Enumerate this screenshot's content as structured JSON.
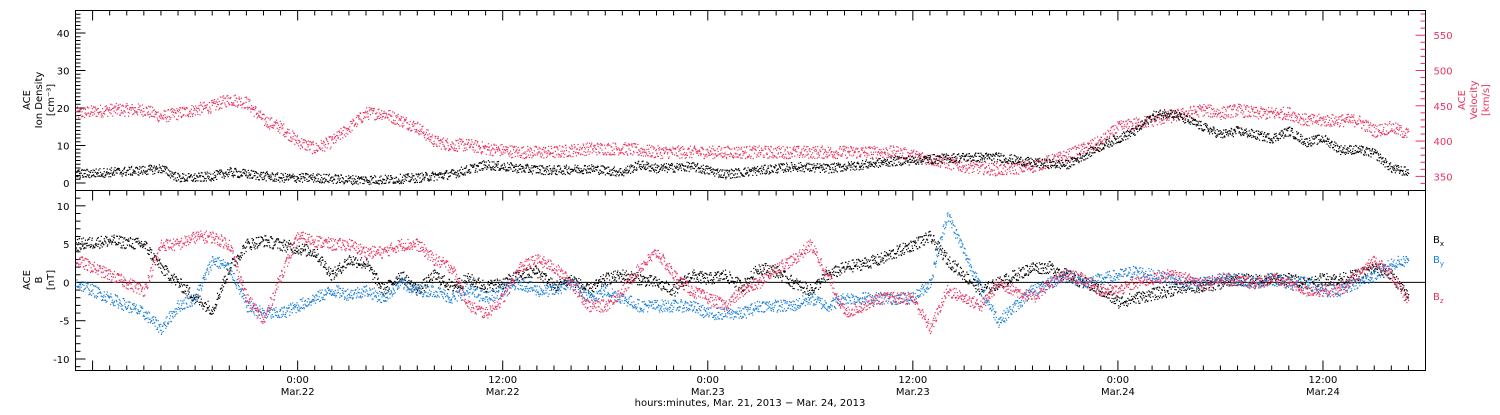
{
  "colors": {
    "black": "#000000",
    "pink": "#e8335f",
    "blue": "#1a7fd8"
  },
  "chart_data": [
    {
      "type": "scatter",
      "panel": "top",
      "ylabel_left_lines": [
        "ACE",
        "Ion Density",
        "[cm⁻³]"
      ],
      "ylabel_right_lines": [
        "ACE",
        "Velocity",
        "[km/s]"
      ],
      "ylim_left": [
        -2,
        46
      ],
      "yticks_left": [
        0,
        10,
        20,
        30,
        40
      ],
      "ylim_right": [
        330,
        585
      ],
      "yticks_right": [
        350,
        400,
        450,
        500,
        550
      ],
      "series": [
        {
          "axis": "left",
          "color": "#000000",
          "x": [
            0,
            2,
            4,
            5,
            6,
            7,
            8,
            9,
            10,
            12,
            14,
            16,
            18,
            20,
            22,
            24,
            26,
            28,
            30,
            32,
            33,
            34,
            36,
            38,
            40,
            42,
            44,
            46,
            48,
            50,
            52,
            54,
            56,
            58,
            60,
            61,
            62,
            63,
            64,
            65,
            66,
            67,
            68,
            69,
            70,
            71,
            72,
            73,
            74,
            75,
            76,
            77,
            78
          ],
          "y": [
            2.5,
            3,
            3.5,
            4,
            1.5,
            1.5,
            2,
            3,
            2.5,
            1.5,
            1.5,
            1,
            1,
            1.5,
            2.5,
            5,
            4,
            3.5,
            4,
            3,
            5,
            4,
            4.5,
            2.5,
            3.5,
            4.5,
            4,
            5,
            6,
            6.5,
            7,
            7,
            5.5,
            5,
            10,
            12,
            14,
            18,
            19,
            17,
            15,
            13,
            14,
            13,
            12,
            14,
            11,
            12,
            9,
            9,
            8,
            4,
            3
          ]
        },
        {
          "axis": "right",
          "color": "#e8335f",
          "x": [
            0,
            2,
            4,
            5,
            6,
            7,
            8,
            9,
            10,
            11,
            12,
            13,
            14,
            15,
            16,
            17,
            18,
            19,
            20,
            21,
            22,
            23,
            24,
            26,
            28,
            30,
            32,
            34,
            36,
            38,
            40,
            42,
            44,
            46,
            48,
            50,
            52,
            54,
            56,
            58,
            60,
            61,
            62,
            63,
            64,
            65,
            66,
            67,
            68,
            69,
            70,
            71,
            72,
            73,
            74,
            75,
            76,
            77,
            78
          ],
          "y": [
            440,
            445,
            445,
            435,
            440,
            445,
            450,
            460,
            455,
            430,
            420,
            400,
            390,
            400,
            420,
            440,
            440,
            430,
            420,
            400,
            395,
            395,
            390,
            385,
            385,
            390,
            390,
            385,
            385,
            385,
            385,
            385,
            385,
            385,
            385,
            375,
            365,
            360,
            365,
            380,
            400,
            420,
            425,
            430,
            435,
            440,
            445,
            440,
            445,
            440,
            440,
            440,
            430,
            430,
            430,
            430,
            415,
            420,
            410
          ]
        }
      ]
    },
    {
      "type": "scatter",
      "panel": "bottom",
      "ylabel_left_lines": [
        "ACE",
        "B",
        "[nT]"
      ],
      "ylim": [
        -11.5,
        12
      ],
      "yticks": [
        -10,
        -5,
        0,
        5,
        10
      ],
      "zero_line": true,
      "legend": [
        "B",
        "B",
        "B"
      ],
      "legend_subscripts": [
        "x",
        "y",
        "z"
      ],
      "series": [
        {
          "name": "Bx",
          "color": "#000000",
          "x": [
            0,
            2,
            4,
            5,
            6,
            7,
            8,
            9,
            10,
            11,
            12,
            13,
            14,
            15,
            16,
            17,
            18,
            19,
            20,
            21,
            22,
            23,
            24,
            25,
            26,
            27,
            28,
            29,
            30,
            31,
            32,
            33,
            34,
            35,
            36,
            37,
            38,
            39,
            40,
            41,
            42,
            43,
            44,
            45,
            46,
            47,
            48,
            49,
            50,
            51,
            52,
            53,
            54,
            55,
            56,
            57,
            58,
            59,
            60,
            61,
            62,
            63,
            64,
            65,
            66,
            67,
            68,
            69,
            70,
            71,
            72,
            73,
            74,
            75,
            76,
            77,
            78
          ],
          "y": [
            5,
            5.5,
            5,
            2,
            0,
            -2,
            -3.5,
            2,
            5,
            5.5,
            5,
            4.5,
            4,
            1,
            3,
            2.5,
            -1,
            1,
            -1,
            1,
            -0.5,
            0.5,
            -0.5,
            0,
            1,
            1.5,
            -0.5,
            0.5,
            -1,
            0.5,
            1,
            0.5,
            0,
            -1,
            1,
            0.5,
            1,
            -0.5,
            2,
            1.5,
            0,
            -1,
            1,
            2,
            2.5,
            3,
            4,
            5,
            6,
            3,
            1,
            -1,
            0,
            1,
            2,
            2,
            1,
            0,
            -1,
            -2.5,
            -2,
            -1.5,
            -1,
            -0.5,
            -0.5,
            0,
            0.5,
            0.3,
            0.5,
            0.5,
            0,
            0.5,
            0.5,
            1,
            2,
            1,
            -2
          ]
        },
        {
          "name": "By",
          "color": "#1a7fd8",
          "x": [
            0,
            2,
            4,
            5,
            6,
            7,
            8,
            9,
            10,
            11,
            12,
            13,
            14,
            15,
            16,
            17,
            18,
            19,
            20,
            21,
            22,
            23,
            24,
            25,
            26,
            27,
            28,
            29,
            30,
            31,
            32,
            33,
            34,
            35,
            36,
            37,
            38,
            39,
            40,
            41,
            42,
            43,
            44,
            45,
            46,
            47,
            48,
            49,
            50,
            51,
            52,
            53,
            54,
            55,
            56,
            57,
            58,
            59,
            60,
            61,
            62,
            63,
            64,
            65,
            66,
            67,
            68,
            69,
            70,
            71,
            72,
            73,
            74,
            75,
            76,
            77,
            78
          ],
          "y": [
            0,
            -2,
            -4,
            -6,
            -3,
            -2,
            3,
            2,
            -3,
            -4,
            -4,
            -3,
            -2,
            -1,
            -1.5,
            -1,
            -2,
            0,
            -1,
            -1,
            -2,
            -1,
            -2,
            -1,
            0,
            -1,
            -1,
            0,
            -2,
            -1,
            -2,
            -3,
            -3,
            -3,
            -3,
            -4,
            -4,
            -4,
            -3,
            -3,
            -3,
            -2,
            -3,
            -2,
            -2,
            -2,
            -2,
            -2,
            0,
            9,
            4,
            -1,
            -5,
            -3,
            -1,
            0,
            1,
            0,
            0.5,
            1,
            1.5,
            1,
            0.5,
            0,
            0,
            0.5,
            0.5,
            0,
            0.5,
            0,
            0,
            -1,
            -1,
            0,
            1,
            2.5,
            3
          ]
        },
        {
          "name": "Bz",
          "color": "#e8335f",
          "x": [
            0,
            2,
            4,
            5,
            6,
            7,
            8,
            9,
            10,
            11,
            12,
            13,
            14,
            15,
            16,
            17,
            18,
            19,
            20,
            21,
            22,
            23,
            24,
            25,
            26,
            27,
            28,
            29,
            30,
            31,
            32,
            33,
            34,
            35,
            36,
            37,
            38,
            39,
            40,
            41,
            42,
            43,
            44,
            45,
            46,
            47,
            48,
            49,
            50,
            51,
            52,
            53,
            54,
            55,
            56,
            57,
            58,
            59,
            60,
            61,
            62,
            63,
            64,
            65,
            66,
            67,
            68,
            69,
            70,
            71,
            72,
            73,
            74,
            75,
            76,
            77,
            78
          ],
          "y": [
            3,
            1,
            -1,
            5,
            5,
            6,
            6,
            5,
            -2,
            -5,
            1,
            6,
            5.5,
            5,
            5,
            4,
            4,
            5,
            5,
            3,
            2,
            -3,
            -4,
            -2,
            2,
            3,
            2,
            0,
            -3,
            -3,
            -1,
            2,
            4,
            1,
            -1,
            -2,
            -3,
            -1,
            0,
            2,
            3,
            5,
            1,
            -4,
            -3,
            -2,
            -2,
            -2,
            -6,
            -1,
            -2,
            -3,
            0,
            -1,
            -2,
            0,
            1,
            0.5,
            -1,
            -1,
            0,
            0.5,
            1,
            0.5,
            0,
            0.5,
            0.3,
            0,
            0.5,
            0,
            -1,
            -1,
            -1,
            1,
            3,
            1,
            -2.5
          ]
        }
      ],
      "x_tick_labels": [
        [
          "0:00",
          "Mar.22"
        ],
        [
          "12:00",
          "Mar.22"
        ],
        [
          "0:00",
          "Mar.23"
        ],
        [
          "12:00",
          "Mar.23"
        ],
        [
          "0:00",
          "Mar.24"
        ],
        [
          "12:00",
          "Mar.24"
        ]
      ],
      "x_tick_hours": [
        24,
        36,
        48,
        60,
        72,
        84
      ],
      "xlim_hours": [
        11,
        90
      ],
      "xlabel": "hours:minutes, Mar. 21, 2013 − Mar. 24, 2013"
    }
  ]
}
